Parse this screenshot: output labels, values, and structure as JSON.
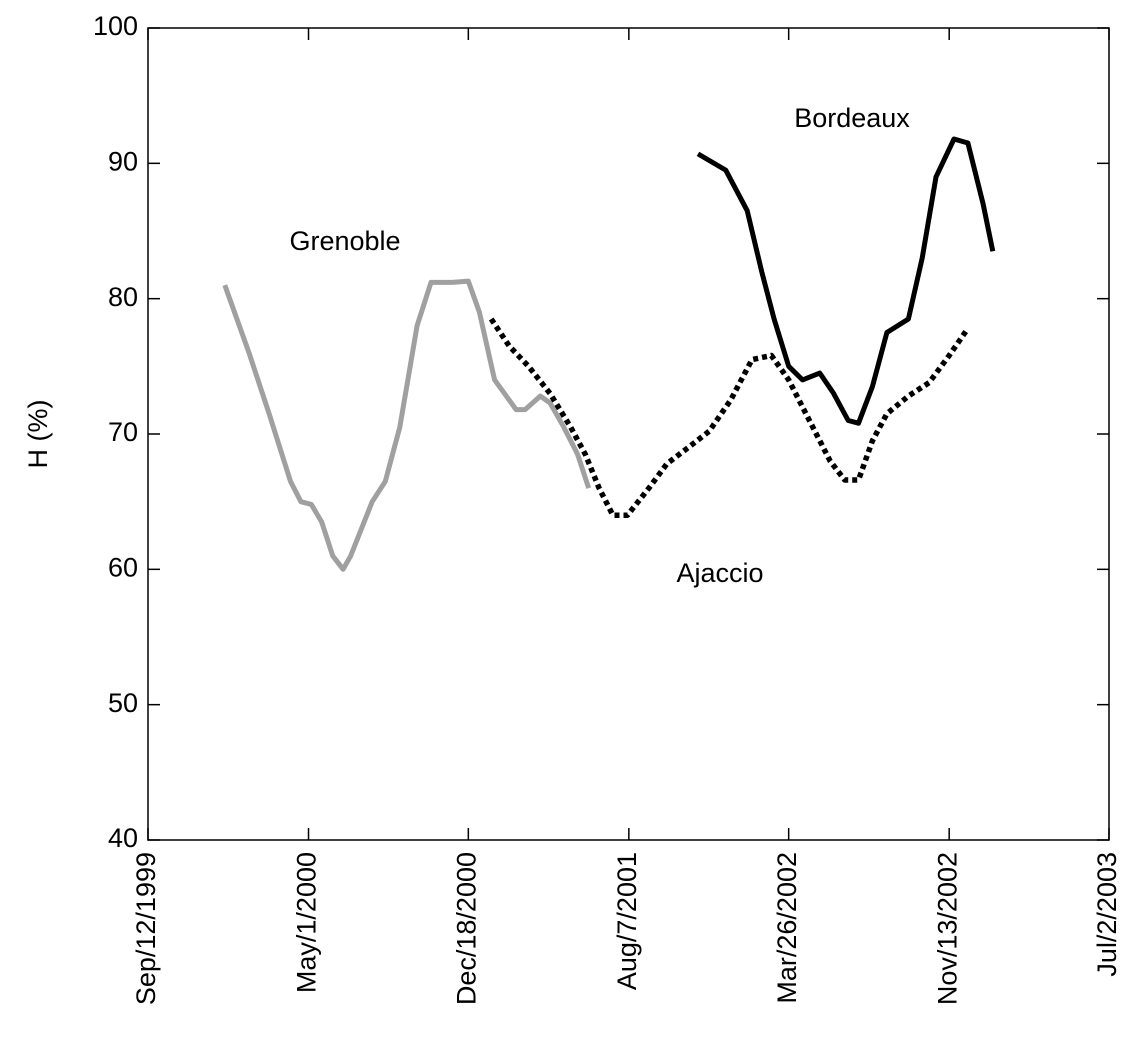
{
  "chart_data": {
    "type": "line",
    "y_label": "H (%)",
    "xlim": [
      "1999-09-12",
      "2003-07-02"
    ],
    "xticks": [
      {
        "value": "1999-09-12",
        "label": "Sep/12/1999"
      },
      {
        "value": "2000-05-01",
        "label": "May/1/2000"
      },
      {
        "value": "2000-12-18",
        "label": "Dec/18/2000"
      },
      {
        "value": "2001-08-07",
        "label": "Aug/7/2001"
      },
      {
        "value": "2002-03-26",
        "label": "Mar/26/2002"
      },
      {
        "value": "2002-11-13",
        "label": "Nov/13/2002"
      },
      {
        "value": "2003-07-02",
        "label": "Jul/2/2003"
      }
    ],
    "ylim": [
      40,
      100
    ],
    "yticks": [
      40,
      50,
      60,
      70,
      80,
      90,
      100
    ],
    "series": [
      {
        "name": "Grenoble",
        "color": "#a0a0a0",
        "style": "solid",
        "x": [
          "2000-01-01",
          "2000-02-05",
          "2000-03-05",
          "2000-04-05",
          "2000-04-20",
          "2000-05-05",
          "2000-05-20",
          "2000-06-05",
          "2000-06-20",
          "2000-07-01",
          "2000-08-01",
          "2000-08-20",
          "2000-09-10",
          "2000-10-05",
          "2000-10-25",
          "2000-11-25",
          "2000-12-18",
          "2001-01-03",
          "2001-01-25",
          "2001-02-25",
          "2001-03-10",
          "2001-04-01",
          "2001-04-15",
          "2001-05-05",
          "2001-05-25",
          "2001-06-10"
        ],
        "values": [
          81,
          76,
          71.5,
          66.5,
          65,
          64.8,
          63.5,
          61,
          60,
          61,
          65,
          66.5,
          70.5,
          78,
          81.2,
          81.2,
          81.3,
          79,
          74,
          71.8,
          71.8,
          72.8,
          72.3,
          70.5,
          68.5,
          66
        ]
      },
      {
        "name": "Ajaccio",
        "color": "#000000",
        "style": "dotted",
        "x": [
          "2001-01-20",
          "2001-02-15",
          "2001-03-15",
          "2001-04-15",
          "2001-05-15",
          "2001-06-05",
          "2001-06-25",
          "2001-07-15",
          "2001-08-05",
          "2001-09-05",
          "2001-10-01",
          "2001-11-01",
          "2001-12-01",
          "2002-01-01",
          "2002-02-01",
          "2002-03-01",
          "2002-03-26",
          "2002-04-25",
          "2002-05-25",
          "2002-06-15",
          "2002-07-05",
          "2002-07-25",
          "2002-08-15",
          "2002-09-15",
          "2002-10-15",
          "2002-11-13",
          "2002-12-10"
        ],
        "values": [
          78.5,
          76.5,
          75,
          73,
          70.5,
          68.5,
          66,
          64,
          64,
          66,
          67.8,
          69,
          70.2,
          72.5,
          75.5,
          75.8,
          74,
          71,
          68,
          66.6,
          66.6,
          69.5,
          71.5,
          72.8,
          73.8,
          75.8,
          77.8
        ]
      },
      {
        "name": "Bordeaux",
        "color": "#000000",
        "style": "solid",
        "x": [
          "2001-11-15",
          "2001-12-25",
          "2002-01-25",
          "2002-02-15",
          "2002-03-05",
          "2002-03-26",
          "2002-04-15",
          "2002-05-10",
          "2002-05-30",
          "2002-06-20",
          "2002-07-05",
          "2002-07-25",
          "2002-08-15",
          "2002-09-15",
          "2002-10-05",
          "2002-10-25",
          "2002-11-20",
          "2002-12-10",
          "2003-01-01",
          "2003-01-15"
        ],
        "values": [
          90.7,
          89.5,
          86.5,
          82,
          78.5,
          75,
          74,
          74.5,
          73,
          71,
          70.8,
          73.5,
          77.5,
          78.5,
          83,
          89,
          91.8,
          91.5,
          87,
          83.5
        ]
      }
    ]
  }
}
